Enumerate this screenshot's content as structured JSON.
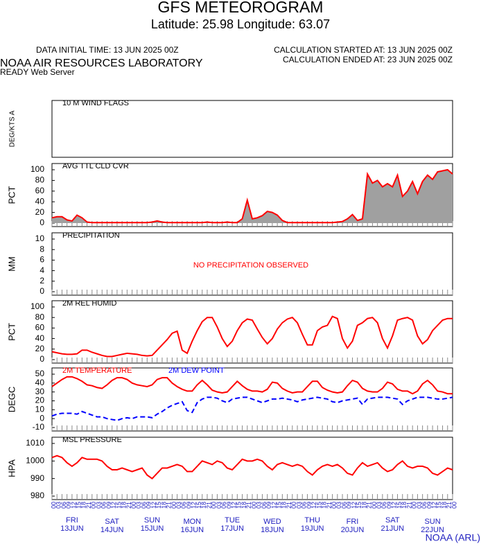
{
  "header": {
    "title": "GFS METEOROGRAM",
    "subtitle": "Latitude: 25.98 Longitude:  63.07",
    "init_time": "DATA INITIAL TIME: 13 JUN 2025 00Z",
    "calc_start": "CALCULATION STARTED AT: 13 JUN 2025 00Z",
    "calc_end": "CALCULATION ENDED AT: 23 JUN 2025 00Z",
    "org": "NOAA AIR RESOURCES LABORATORY",
    "server": "READY Web Server",
    "footer": "NOAA (ARL)"
  },
  "time_axis": {
    "categories": [
      "00",
      "03",
      "06",
      "09",
      "12",
      "15",
      "18",
      "21",
      "00",
      "03",
      "06",
      "09",
      "12",
      "15",
      "18",
      "21",
      "00",
      "03",
      "06",
      "09",
      "12",
      "15",
      "18",
      "21",
      "00",
      "03",
      "06",
      "09",
      "12",
      "15",
      "18",
      "21",
      "00",
      "03",
      "06",
      "09",
      "12",
      "15",
      "18",
      "21",
      "00",
      "03",
      "06",
      "09",
      "12",
      "15",
      "18",
      "21",
      "00",
      "03",
      "06",
      "09",
      "12",
      "15",
      "18",
      "21",
      "00",
      "03",
      "06",
      "09",
      "12",
      "15",
      "18",
      "21",
      "00",
      "03",
      "06",
      "09",
      "12",
      "15",
      "18",
      "21",
      "00",
      "03",
      "06",
      "09",
      "12",
      "15",
      "18",
      "21",
      "00"
    ],
    "days": [
      [
        "FRI",
        "13JUN"
      ],
      [
        "SAT",
        "14JUN"
      ],
      [
        "SUN",
        "15JUN"
      ],
      [
        "MON",
        "16JUN"
      ],
      [
        "TUE",
        "17JUN"
      ],
      [
        "WED",
        "18JUN"
      ],
      [
        "THU",
        "19JUN"
      ],
      [
        "FRI",
        "20JUN"
      ],
      [
        "SAT",
        "21JUN"
      ],
      [
        "SUN",
        "22JUN"
      ]
    ]
  },
  "chart_data": [
    {
      "type": "barbs",
      "title": "10 M  WIND FLAGS",
      "ylabel": "DEG/KTS A"
    },
    {
      "type": "area",
      "title": "AVG TTL CLD CVR",
      "ylabel": "PCT",
      "ylim": [
        0,
        100
      ],
      "yticks": [
        0,
        20,
        40,
        60,
        80,
        100
      ],
      "series": [
        {
          "color": "#ff0000",
          "fill": "#a0a0a0",
          "values": [
            10,
            12,
            12,
            6,
            4,
            15,
            10,
            2,
            1,
            1,
            1,
            1,
            1,
            1,
            1,
            1,
            1,
            1,
            1,
            1,
            2,
            4,
            2,
            1,
            1,
            1,
            1,
            1,
            1,
            1,
            1,
            2,
            1,
            1,
            1,
            2,
            1,
            1,
            8,
            43,
            8,
            10,
            14,
            22,
            20,
            15,
            5,
            1,
            1,
            1,
            1,
            1,
            1,
            1,
            1,
            1,
            1,
            2,
            3,
            8,
            16,
            5,
            8,
            92,
            75,
            80,
            68,
            74,
            68,
            90,
            50,
            60,
            78,
            55,
            78,
            90,
            82,
            96,
            98,
            100,
            92
          ]
        }
      ]
    },
    {
      "type": "line",
      "title": "PRECIPITATION",
      "ylabel": "MM",
      "ylim": [
        0,
        10
      ],
      "yticks": [
        0,
        2,
        4,
        6,
        8,
        10
      ],
      "annotation": "NO PRECIPITATION OBSERVED",
      "series": []
    },
    {
      "type": "line",
      "title": "2M REL HUMID",
      "ylabel": "PCT",
      "ylim": [
        0,
        100
      ],
      "yticks": [
        0,
        20,
        40,
        60,
        80,
        100
      ],
      "series": [
        {
          "color": "#ff0000",
          "values": [
            15,
            13,
            11,
            10,
            10,
            11,
            18,
            18,
            14,
            11,
            8,
            6,
            6,
            8,
            10,
            12,
            11,
            10,
            8,
            7,
            8,
            18,
            28,
            38,
            50,
            54,
            18,
            12,
            35,
            55,
            72,
            80,
            80,
            62,
            40,
            25,
            35,
            55,
            70,
            77,
            75,
            58,
            42,
            30,
            40,
            58,
            70,
            77,
            80,
            70,
            48,
            28,
            28,
            55,
            62,
            65,
            82,
            78,
            40,
            22,
            35,
            65,
            70,
            78,
            80,
            70,
            40,
            22,
            45,
            75,
            78,
            80,
            75,
            45,
            30,
            38,
            55,
            65,
            75,
            78,
            78
          ]
        }
      ]
    },
    {
      "type": "line",
      "ylabel": "DEGC",
      "ylim": [
        -10,
        50
      ],
      "yticks": [
        -10,
        0,
        10,
        20,
        30,
        40,
        50
      ],
      "series": [
        {
          "name": "2M TEMPERATURE",
          "color": "#ff0000",
          "values": [
            36,
            40,
            44,
            47,
            47,
            45,
            42,
            38,
            37,
            35,
            34,
            38,
            43,
            46,
            46,
            44,
            40,
            38,
            37,
            36,
            38,
            44,
            46,
            46,
            40,
            36,
            33,
            31,
            31,
            38,
            43,
            38,
            32,
            30,
            29,
            30,
            36,
            42,
            37,
            33,
            31,
            31,
            30,
            33,
            41,
            40,
            34,
            31,
            29,
            30,
            30,
            36,
            42,
            42,
            35,
            32,
            30,
            29,
            30,
            37,
            43,
            41,
            34,
            31,
            30,
            30,
            34,
            41,
            39,
            33,
            31,
            31,
            28,
            31,
            39,
            43,
            38,
            31,
            30,
            28,
            28
          ]
        },
        {
          "name": "2M   DEW POINT",
          "color": "#0000ff",
          "dashed": true,
          "values": [
            3,
            5,
            6,
            6,
            6,
            5,
            8,
            6,
            4,
            2,
            2,
            0,
            -1,
            -2,
            0,
            1,
            0,
            2,
            2,
            2,
            1,
            5,
            8,
            12,
            15,
            17,
            19,
            9,
            7,
            18,
            22,
            24,
            24,
            23,
            20,
            18,
            22,
            23,
            24,
            24,
            22,
            20,
            18,
            20,
            22,
            22,
            23,
            22,
            21,
            19,
            21,
            22,
            23,
            24,
            23,
            22,
            19,
            18,
            20,
            21,
            22,
            23,
            16,
            22,
            23,
            24,
            24,
            24,
            23,
            22,
            16,
            20,
            22,
            24,
            24,
            24,
            23,
            22,
            22,
            23,
            24
          ]
        }
      ]
    },
    {
      "type": "line",
      "title": "MSL PRESSURE",
      "ylabel": "HPA",
      "ylim": [
        980,
        1010
      ],
      "yticks": [
        980,
        990,
        1000,
        1010
      ],
      "series": [
        {
          "color": "#ff0000",
          "values": [
            1002,
            1003,
            1002,
            999,
            997,
            999,
            1002,
            1001,
            1001,
            1001,
            1000,
            997,
            995,
            995,
            996,
            995,
            994,
            995,
            996,
            992,
            990,
            993,
            996,
            996,
            997,
            998,
            997,
            994,
            994,
            997,
            1000,
            999,
            998,
            1000,
            999,
            996,
            995,
            998,
            1001,
            1000,
            1000,
            1001,
            1000,
            997,
            995,
            998,
            999,
            998,
            997,
            998,
            997,
            994,
            992,
            995,
            997,
            998,
            997,
            998,
            996,
            993,
            992,
            996,
            999,
            997,
            998,
            999,
            996,
            994,
            995,
            998,
            1000,
            997,
            996,
            997,
            997,
            996,
            993,
            992,
            994,
            996,
            995
          ]
        }
      ]
    }
  ]
}
